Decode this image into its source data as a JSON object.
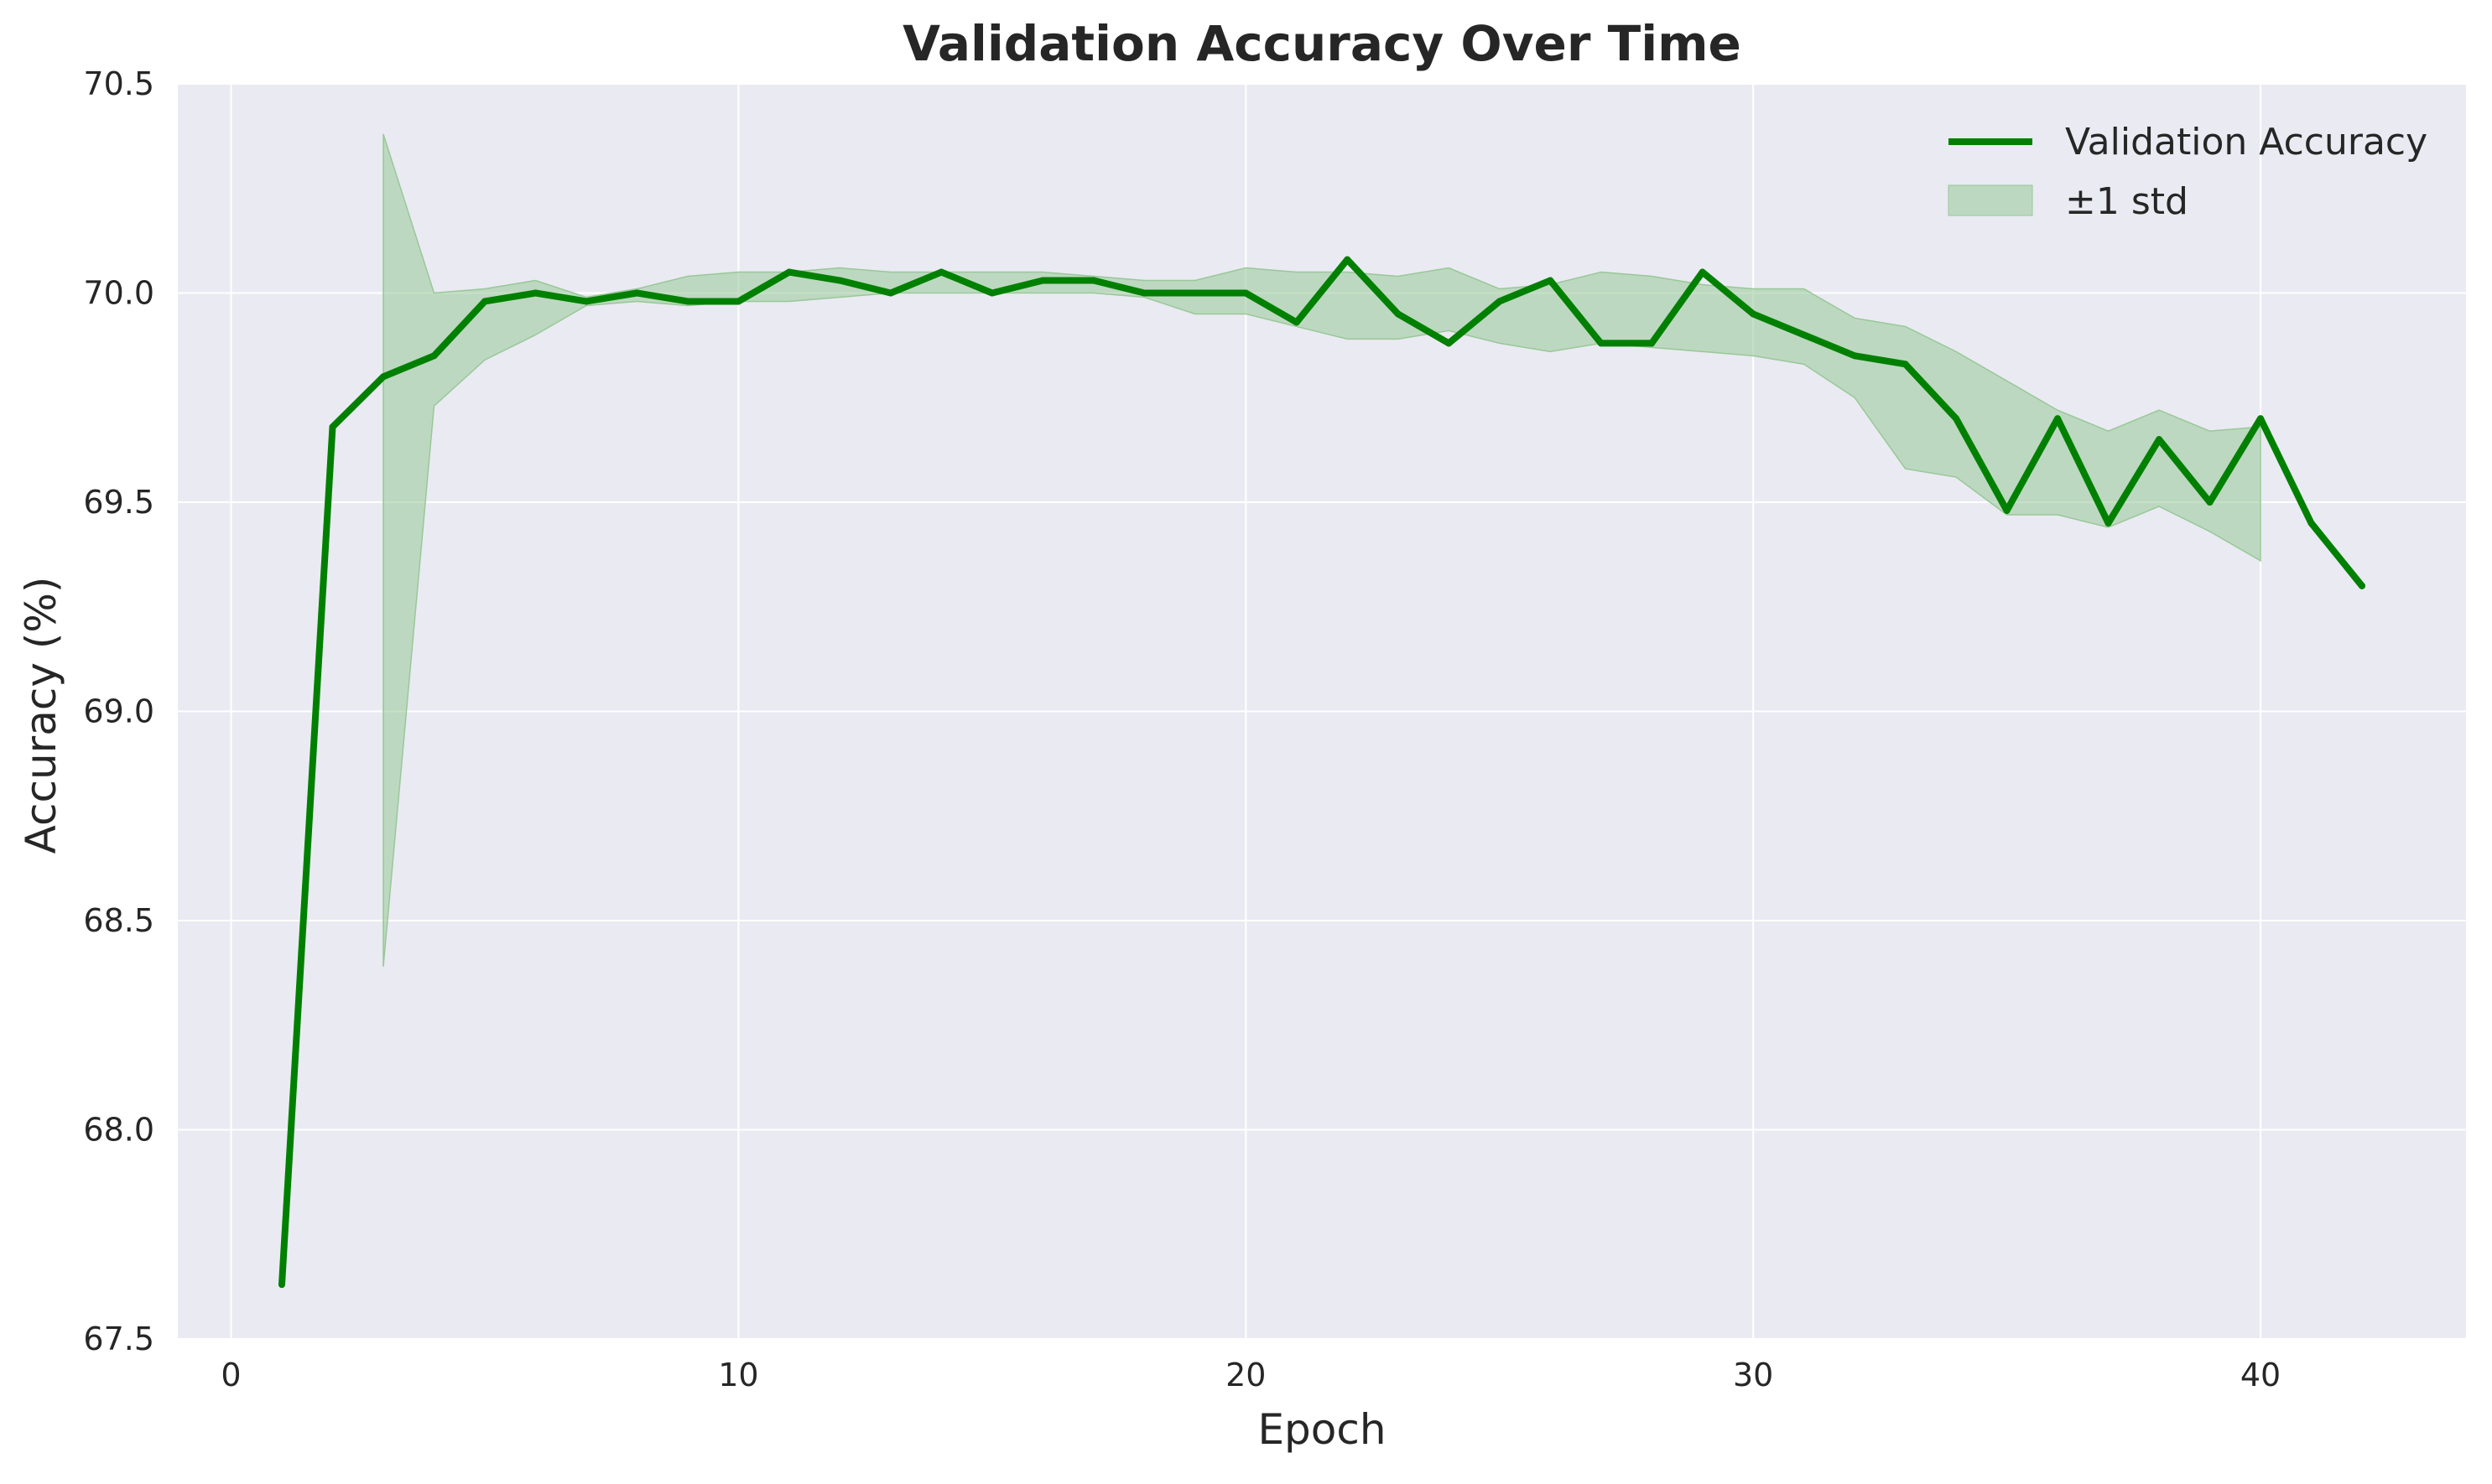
{
  "chart_data": {
    "type": "line",
    "title": "Validation Accuracy Over Time",
    "xlabel": "Epoch",
    "ylabel": "Accuracy (%)",
    "xlim": [
      -1.05,
      44.05
    ],
    "ylim": [
      67.5,
      70.5
    ],
    "x_ticks": [
      0,
      10,
      20,
      30,
      40
    ],
    "y_ticks": [
      67.5,
      68.0,
      68.5,
      69.0,
      69.5,
      70.0,
      70.5
    ],
    "x_tick_labels": [
      "0",
      "10",
      "20",
      "30",
      "40"
    ],
    "y_tick_labels": [
      "67.5",
      "68.0",
      "68.5",
      "69.0",
      "69.5",
      "70.0",
      "70.5"
    ],
    "grid": true,
    "legend_position": "top-right",
    "legend": {
      "line_label": "Validation Accuracy",
      "band_label": "±1 std"
    },
    "colors": {
      "line": "#008000",
      "band": "#98c898",
      "plot_background": "#eaeaf2",
      "grid": "#ffffff",
      "text": "#262626"
    },
    "series": [
      {
        "name": "Validation Accuracy",
        "x": [
          1,
          2,
          3,
          4,
          5,
          6,
          7,
          8,
          9,
          10,
          11,
          12,
          13,
          14,
          15,
          16,
          17,
          18,
          19,
          20,
          21,
          22,
          23,
          24,
          25,
          26,
          27,
          28,
          29,
          30,
          31,
          32,
          33,
          34,
          35,
          36,
          37,
          38,
          39,
          40,
          41,
          42
        ],
        "values": [
          67.63,
          69.68,
          69.8,
          69.85,
          69.98,
          70.0,
          69.98,
          70.0,
          69.98,
          69.98,
          70.05,
          70.03,
          70.0,
          70.05,
          70.0,
          70.03,
          70.03,
          70.0,
          70.0,
          70.0,
          69.93,
          70.08,
          69.95,
          69.88,
          69.98,
          70.03,
          69.88,
          69.88,
          70.05,
          69.95,
          69.9,
          69.85,
          69.83,
          69.7,
          69.48,
          69.7,
          69.45,
          69.65,
          69.5,
          69.7,
          69.45,
          69.3
        ]
      }
    ],
    "band": {
      "name": "±1 std",
      "x": [
        3,
        4,
        5,
        6,
        7,
        8,
        9,
        10,
        11,
        12,
        13,
        14,
        15,
        16,
        17,
        18,
        19,
        20,
        21,
        22,
        23,
        24,
        25,
        26,
        27,
        28,
        29,
        30,
        31,
        32,
        33,
        34,
        35,
        36,
        37,
        38,
        39,
        40
      ],
      "lower": [
        68.39,
        69.73,
        69.84,
        69.9,
        69.97,
        69.98,
        69.97,
        69.98,
        69.98,
        69.99,
        70.0,
        70.0,
        70.0,
        70.0,
        70.0,
        69.99,
        69.95,
        69.95,
        69.92,
        69.89,
        69.89,
        69.91,
        69.88,
        69.86,
        69.88,
        69.87,
        69.86,
        69.85,
        69.83,
        69.75,
        69.58,
        69.56,
        69.47,
        69.47,
        69.44,
        69.49,
        69.43,
        69.36
      ],
      "upper": [
        70.38,
        70.0,
        70.01,
        70.03,
        69.99,
        70.01,
        70.04,
        70.05,
        70.05,
        70.06,
        70.05,
        70.05,
        70.05,
        70.05,
        70.04,
        70.03,
        70.03,
        70.06,
        70.05,
        70.05,
        70.04,
        70.06,
        70.01,
        70.02,
        70.05,
        70.04,
        70.02,
        70.01,
        70.01,
        69.94,
        69.92,
        69.86,
        69.79,
        69.72,
        69.67,
        69.72,
        69.67,
        69.68
      ]
    }
  }
}
